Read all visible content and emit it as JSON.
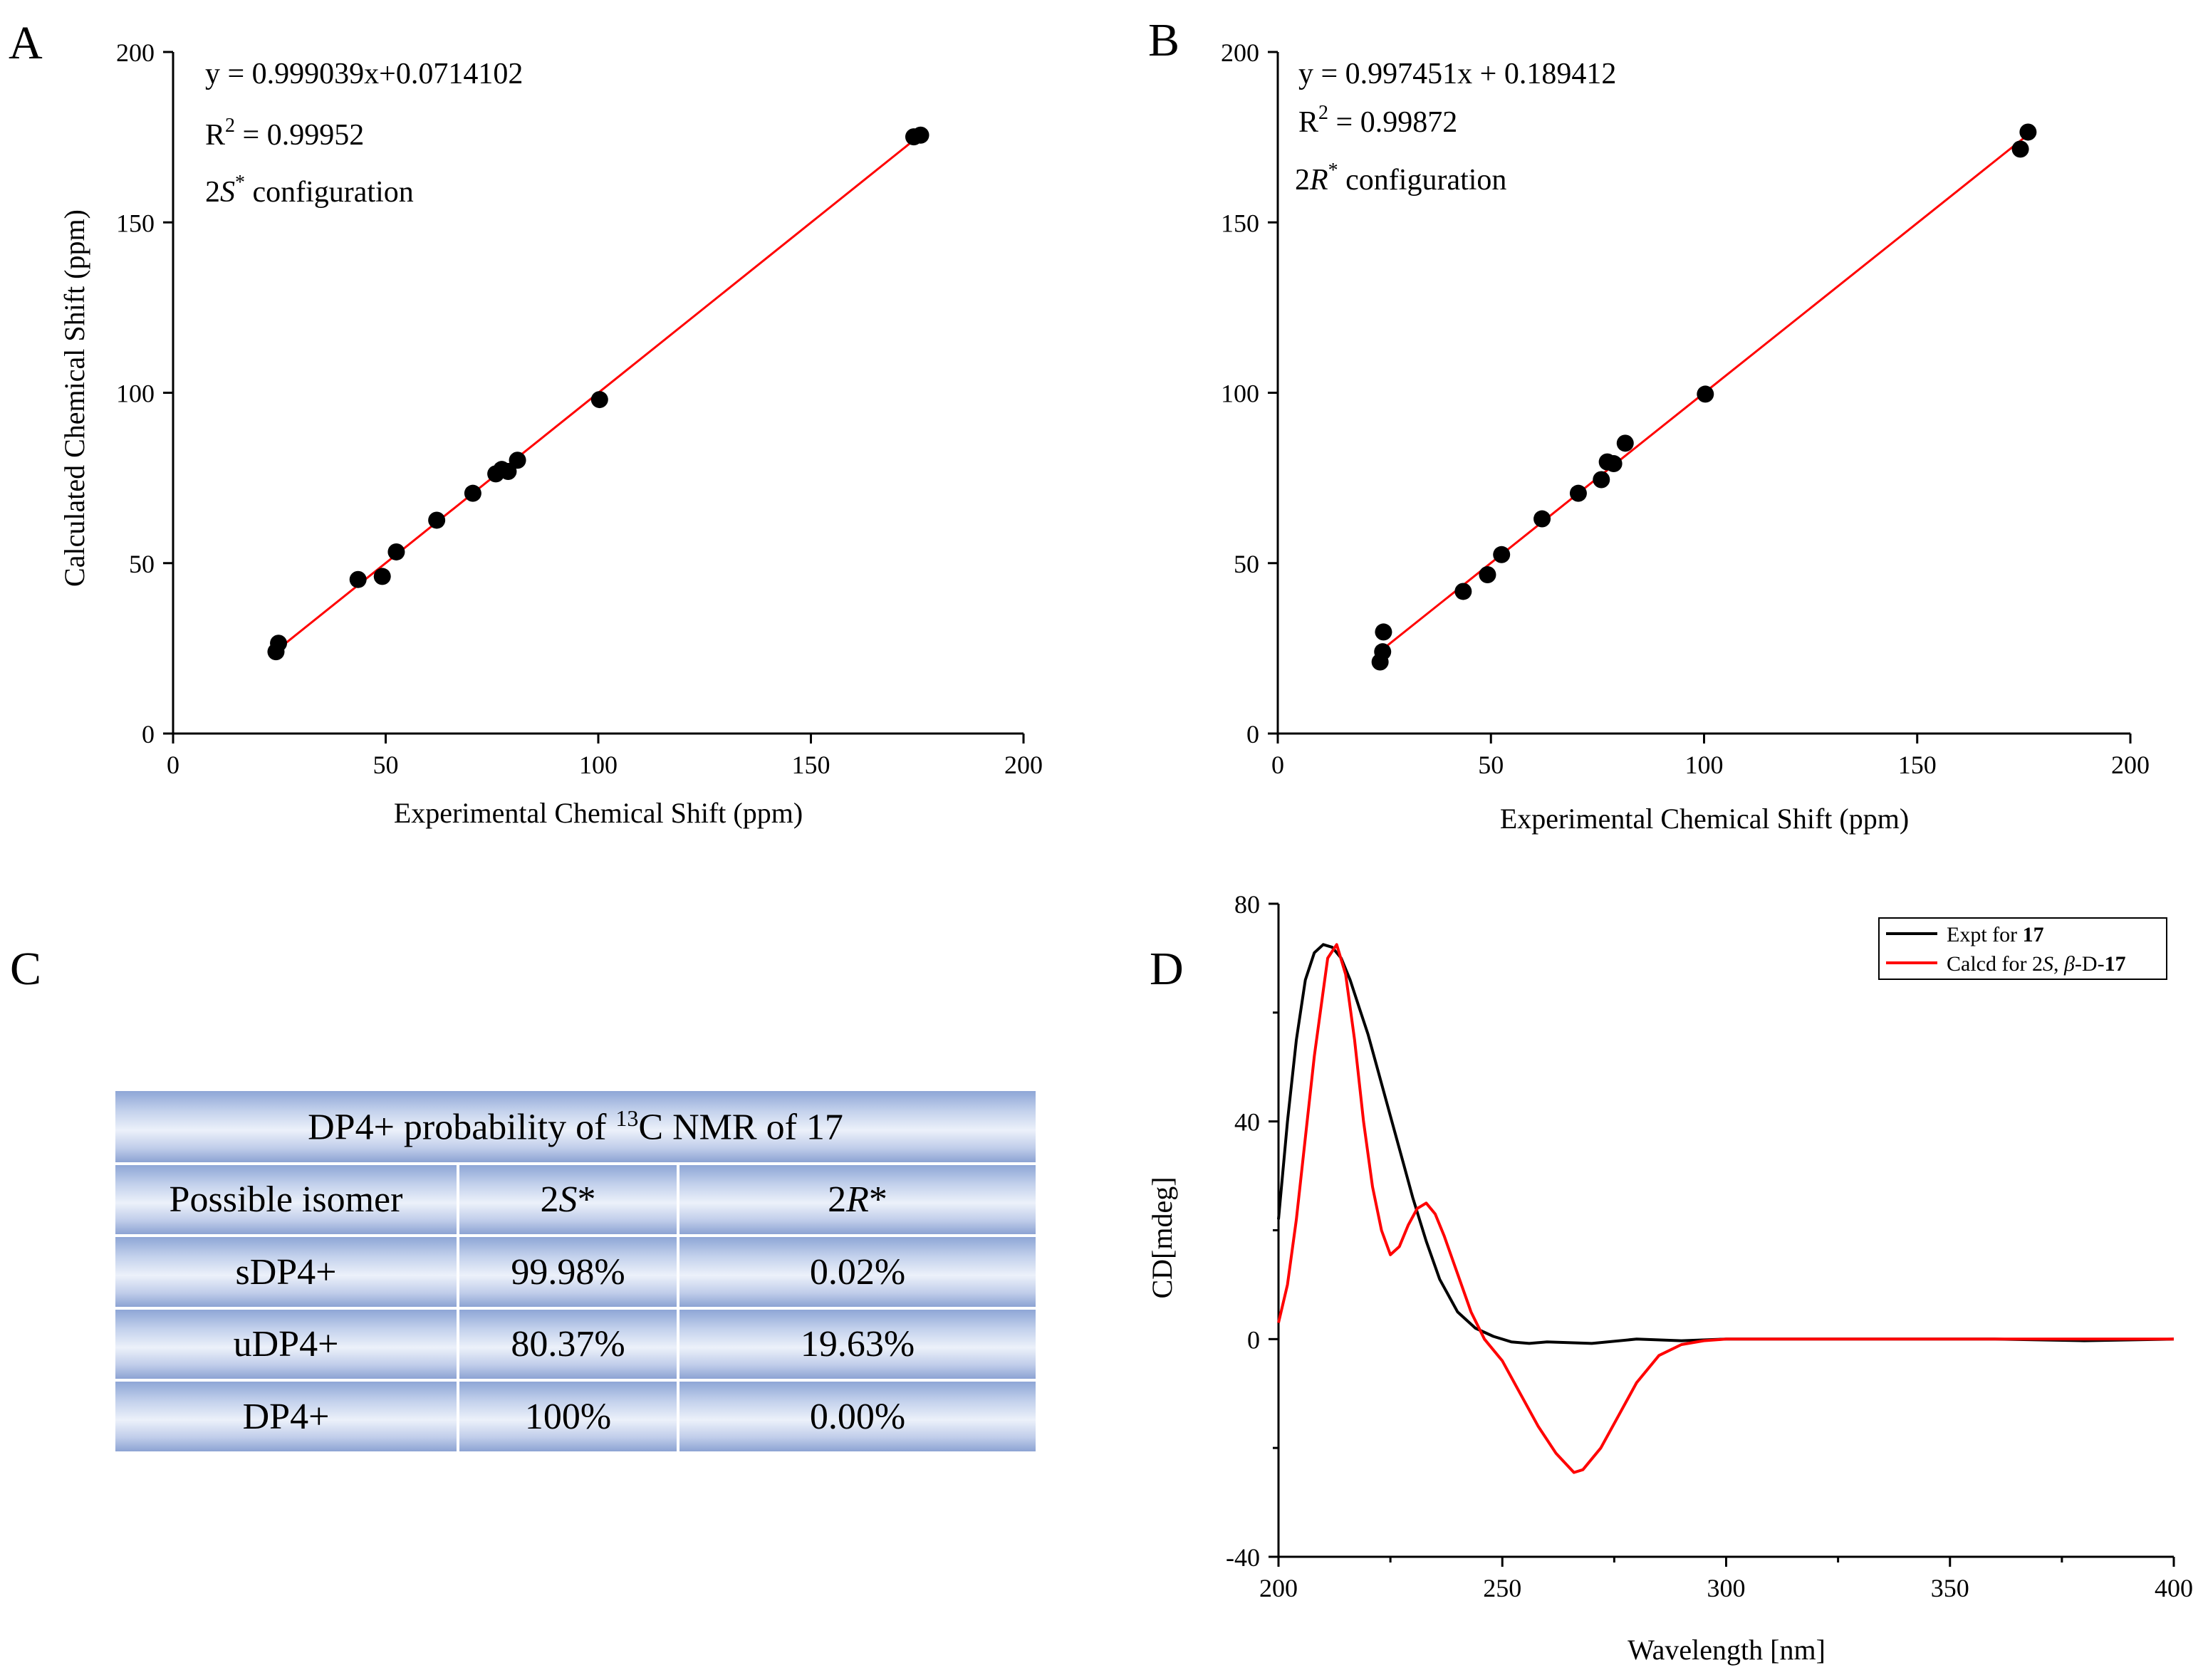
{
  "colors": {
    "fit_line": "#ff0000",
    "points": "#000000",
    "expt_curve": "#000000",
    "calcd_curve": "#ff0000"
  },
  "panels": {
    "A": {
      "letter": "A"
    },
    "B": {
      "letter": "B"
    },
    "C": {
      "letter": "C"
    },
    "D": {
      "letter": "D"
    }
  },
  "table": {
    "title_pre": "DP4+ probability of ",
    "title_sup": "13",
    "title_post": "C NMR of 17",
    "header": {
      "col1": "Possible isomer",
      "col2_num": "2",
      "col2_letter": "S",
      "col2_star": "*",
      "col3_num": "2",
      "col3_letter": "R",
      "col3_star": "*"
    },
    "rows": [
      {
        "name": "sDP4+",
        "s": "99.98%",
        "r": "0.02%"
      },
      {
        "name": "uDP4+",
        "s": "80.37%",
        "r": "19.63%"
      },
      {
        "name": "DP4+",
        "s": "100%",
        "r": "0.00%"
      }
    ]
  },
  "chart_data": [
    {
      "id": "A",
      "type": "scatter",
      "xlabel": "Experimental Chemical Shift (ppm)",
      "ylabel": "Calculated Chemical Shift (ppm)",
      "xlim": [
        0,
        200
      ],
      "ylim": [
        0,
        200
      ],
      "xticks": [
        0,
        50,
        100,
        150,
        200
      ],
      "yticks": [
        0,
        50,
        100,
        150,
        200
      ],
      "equation": "y = 0.999039x+0.0714102",
      "r2_label": "R",
      "r2_sup": "2",
      "r2_value": " = 0.99952",
      "config_num": "2",
      "config_letter": "S",
      "config_sup": "*",
      "config_text": " configuration",
      "fit": {
        "slope": 0.999039,
        "intercept": 0.0714102,
        "x_range": [
          24,
          175
        ]
      },
      "points": [
        [
          24.2,
          24.0
        ],
        [
          24.8,
          26.5
        ],
        [
          43.5,
          45.2
        ],
        [
          49.2,
          46.1
        ],
        [
          52.5,
          53.3
        ],
        [
          62.0,
          62.6
        ],
        [
          70.5,
          70.5
        ],
        [
          75.9,
          76.2
        ],
        [
          77.3,
          77.5
        ],
        [
          78.8,
          76.9
        ],
        [
          81.0,
          80.2
        ],
        [
          100.3,
          98.0
        ],
        [
          174.2,
          175.1
        ],
        [
          175.8,
          175.6
        ]
      ]
    },
    {
      "id": "B",
      "type": "scatter",
      "xlabel": "Experimental Chemical Shift (ppm)",
      "ylabel": "",
      "xlim": [
        0,
        200
      ],
      "ylim": [
        0,
        200
      ],
      "xticks": [
        0,
        50,
        100,
        150,
        200
      ],
      "yticks": [
        0,
        50,
        100,
        150,
        200
      ],
      "equation": "y = 0.997451x + 0.189412",
      "r2_label": "R",
      "r2_sup": "2",
      "r2_value": " = 0.99872",
      "config_num": "2",
      "config_letter": "R",
      "config_sup": "*",
      "config_text": " configuration",
      "fit": {
        "slope": 0.997451,
        "intercept": 0.189412,
        "x_range": [
          24,
          175
        ]
      },
      "points": [
        [
          24.0,
          21.0
        ],
        [
          24.6,
          24.0
        ],
        [
          24.8,
          29.8
        ],
        [
          43.5,
          41.7
        ],
        [
          49.2,
          46.6
        ],
        [
          52.5,
          52.5
        ],
        [
          62.0,
          63.0
        ],
        [
          70.5,
          70.5
        ],
        [
          75.9,
          74.5
        ],
        [
          77.3,
          79.7
        ],
        [
          78.8,
          79.2
        ],
        [
          81.5,
          85.2
        ],
        [
          100.3,
          99.6
        ],
        [
          174.2,
          171.5
        ],
        [
          176.0,
          176.5
        ]
      ]
    },
    {
      "id": "D",
      "type": "line",
      "xlabel": "Wavelength [nm]",
      "ylabel": "CD[mdeg]",
      "xlim": [
        200,
        400
      ],
      "ylim": [
        -40,
        80
      ],
      "xticks": [
        200,
        250,
        300,
        350,
        400
      ],
      "yticks": [
        -40,
        0,
        40,
        80
      ],
      "legend_position": "top-right",
      "series": [
        {
          "name": "Expt for ",
          "name_bold": "17",
          "x": [
            200,
            202,
            204,
            206,
            208,
            210,
            212,
            214,
            216,
            218,
            220,
            222,
            225,
            228,
            230,
            233,
            236,
            240,
            244,
            248,
            252,
            256,
            260,
            270,
            280,
            290,
            300,
            320,
            340,
            360,
            380,
            400
          ],
          "y": [
            22,
            40,
            55,
            66,
            71,
            72.5,
            72,
            70,
            66,
            61,
            56,
            50,
            41,
            32,
            26,
            18,
            11,
            5,
            2,
            0.5,
            -0.5,
            -0.8,
            -0.5,
            -0.8,
            0,
            -0.3,
            0,
            0,
            0,
            0,
            -0.3,
            0
          ]
        },
        {
          "name": "Calcd for 2",
          "name_italic": "S",
          "name_mid": ", ",
          "name_beta": "β",
          "name_suffix": "-D-",
          "name_bold": "17",
          "x": [
            200,
            202,
            204,
            206,
            208,
            210,
            211,
            213,
            215,
            217,
            219,
            221,
            223,
            225,
            227,
            229,
            231,
            233,
            235,
            237,
            240,
            243,
            246,
            250,
            254,
            258,
            262,
            266,
            268,
            272,
            276,
            280,
            285,
            290,
            295,
            300,
            310,
            320,
            340,
            360,
            380,
            400
          ],
          "y": [
            3,
            10,
            22,
            37,
            52,
            64,
            70,
            72.5,
            67,
            55,
            40,
            28,
            20,
            15.5,
            17,
            21,
            24,
            25,
            23,
            19,
            12,
            5,
            0,
            -4,
            -10,
            -16,
            -21,
            -24.5,
            -24,
            -20,
            -14,
            -8,
            -3,
            -1,
            -0.3,
            0,
            0,
            0,
            0,
            0,
            0,
            0
          ]
        }
      ]
    }
  ]
}
